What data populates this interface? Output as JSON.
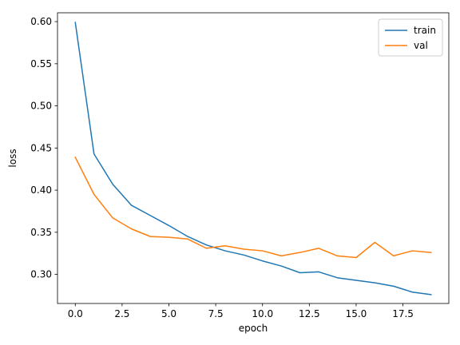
{
  "chart_data": {
    "type": "line",
    "title": "",
    "xlabel": "epoch",
    "ylabel": "loss",
    "xlim": [
      -0.95,
      19.95
    ],
    "ylim": [
      0.2655,
      0.6105
    ],
    "xticks": [
      0,
      2.5,
      5,
      7.5,
      10,
      12.5,
      15,
      17.5
    ],
    "xtick_labels": [
      "0.0",
      "2.5",
      "5.0",
      "7.5",
      "10.0",
      "12.5",
      "15.0",
      "17.5"
    ],
    "yticks": [
      0.3,
      0.35,
      0.4,
      0.45,
      0.5,
      0.55,
      0.6
    ],
    "ytick_labels": [
      "0.30",
      "0.35",
      "0.40",
      "0.45",
      "0.50",
      "0.55",
      "0.60"
    ],
    "grid": false,
    "legend_position": "top-right",
    "x": [
      0,
      1,
      2,
      3,
      4,
      5,
      6,
      7,
      8,
      9,
      10,
      11,
      12,
      13,
      14,
      15,
      16,
      17,
      18,
      19
    ],
    "series": [
      {
        "name": "train",
        "color": "#1f77b4",
        "values": [
          0.599,
          0.443,
          0.407,
          0.382,
          0.37,
          0.358,
          0.345,
          0.335,
          0.328,
          0.323,
          0.316,
          0.31,
          0.302,
          0.303,
          0.296,
          0.293,
          0.29,
          0.286,
          0.279,
          0.276
        ]
      },
      {
        "name": "val",
        "color": "#ff7f0e",
        "values": [
          0.439,
          0.395,
          0.367,
          0.354,
          0.345,
          0.344,
          0.342,
          0.331,
          0.334,
          0.33,
          0.328,
          0.322,
          0.326,
          0.331,
          0.322,
          0.32,
          0.338,
          0.322,
          0.328,
          0.326
        ]
      }
    ]
  }
}
